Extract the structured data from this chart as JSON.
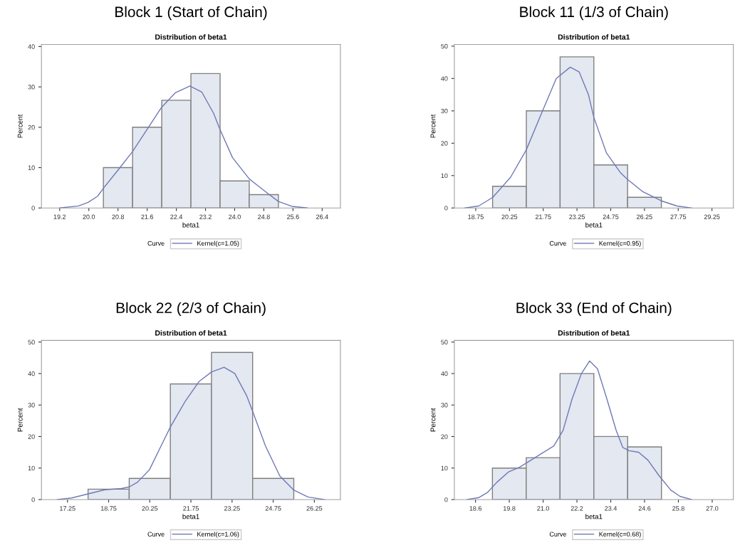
{
  "chart_data": [
    {
      "type": "histogram",
      "title": "Block 1 (Start of Chain)",
      "subtitle": "Distribution of beta1",
      "xlabel": "beta1",
      "ylabel": "Percent",
      "legend_title": "Curve",
      "legend": "bottom",
      "grid": false,
      "color": "#e3e8f1",
      "bins": [
        20.4,
        21.2,
        22.0,
        22.8,
        23.6,
        24.4,
        25.2
      ],
      "values": [
        10,
        20,
        26.7,
        33.3,
        6.7,
        3.3
      ],
      "xlim": [
        18.7,
        26.9
      ],
      "xticks": [
        19.2,
        {
          "value": 20,
          "label": "20.0"
        },
        20.8,
        21.6,
        22.4,
        23.2,
        {
          "value": 24,
          "label": "24.0"
        },
        24.8,
        25.6,
        26.4
      ],
      "ylim": [
        0,
        40.5
      ],
      "yticks": [
        0,
        10,
        20,
        30,
        40
      ],
      "series": [
        {
          "type": "line",
          "name": "Kernel(c=1.05)",
          "color": "#6f79b5",
          "x": [
            19.2,
            19.72,
            19.98,
            20.24,
            20.41,
            20.82,
            21.2,
            21.6,
            22.0,
            22.38,
            22.77,
            23.1,
            23.42,
            23.6,
            23.94,
            24.4,
            24.85,
            25.2,
            25.57,
            25.99
          ],
          "values": [
            0,
            0.5,
            1.4,
            2.9,
            5,
            9.6,
            14,
            19.5,
            25,
            28.6,
            30.2,
            28.7,
            23.5,
            19.4,
            12.5,
            7.2,
            4,
            1.6,
            0.4,
            0
          ]
        }
      ]
    },
    {
      "type": "histogram",
      "title": "Block 11 (1/3 of Chain)",
      "subtitle": "Distribution of beta1",
      "xlabel": "beta1",
      "ylabel": "Percent",
      "legend_title": "Curve",
      "legend": "bottom",
      "grid": false,
      "color": "#e3e8f1",
      "bins": [
        19.5,
        21.0,
        22.5,
        24.0,
        25.5,
        27.0
      ],
      "values": [
        6.7,
        30,
        46.7,
        13.3,
        3.3
      ],
      "xlim": [
        17.8,
        30.2
      ],
      "xticks": [
        18.75,
        20.25,
        21.75,
        23.25,
        24.75,
        26.25,
        27.75,
        29.25
      ],
      "ylim": [
        0,
        50.5
      ],
      "yticks": [
        0,
        10,
        20,
        30,
        40,
        50
      ],
      "series": [
        {
          "type": "line",
          "name": "Kernel(c=0.95)",
          "color": "#6f79b5",
          "x": [
            18.27,
            18.88,
            19.51,
            20.3,
            21.0,
            21.72,
            22.33,
            22.95,
            23.35,
            23.76,
            24.0,
            24.56,
            25.17,
            25.5,
            26.18,
            27.0,
            27.7,
            28.35
          ],
          "values": [
            0,
            0.6,
            3.3,
            9.5,
            18,
            30,
            40,
            43.5,
            42,
            35,
            28,
            17,
            11,
            8.8,
            5,
            2.2,
            0.6,
            0
          ]
        }
      ]
    },
    {
      "type": "histogram",
      "title": "Block 22 (2/3 of Chain)",
      "subtitle": "Distribution of beta1",
      "xlabel": "beta1",
      "ylabel": "Percent",
      "legend_title": "Curve",
      "legend": "bottom",
      "grid": false,
      "color": "#e3e8f1",
      "bins": [
        18.0,
        19.5,
        21.0,
        22.5,
        24.0,
        25.5
      ],
      "values": [
        3.3,
        6.7,
        36.7,
        46.7,
        6.7
      ],
      "xlim": [
        16.3,
        27.2
      ],
      "xticks": [
        17.25,
        18.75,
        20.25,
        21.75,
        23.25,
        24.75,
        26.25
      ],
      "ylim": [
        0,
        50.5
      ],
      "yticks": [
        0,
        10,
        20,
        30,
        40,
        50
      ],
      "series": [
        {
          "type": "line",
          "name": "Kernel(c=1.06)",
          "color": "#6f79b5",
          "x": [
            16.88,
            17.4,
            18.0,
            18.6,
            19.21,
            19.5,
            19.8,
            20.24,
            20.66,
            21.0,
            21.53,
            22.05,
            22.5,
            22.96,
            23.35,
            23.78,
            24.0,
            24.47,
            24.99,
            25.5,
            26.02,
            26.63
          ],
          "values": [
            0,
            0.5,
            1.8,
            3.1,
            3.5,
            4,
            5.5,
            9.5,
            17,
            23,
            31,
            37.5,
            40.5,
            42,
            40,
            33,
            28,
            17,
            7.5,
            3,
            0.8,
            0
          ]
        }
      ]
    },
    {
      "type": "histogram",
      "title": "Block 33 (End of Chain)",
      "subtitle": "Distribution of beta1",
      "xlabel": "beta1",
      "ylabel": "Percent",
      "legend_title": "Curve",
      "legend": "bottom",
      "grid": false,
      "color": "#e3e8f1",
      "bins": [
        19.2,
        20.4,
        21.6,
        22.8,
        24.0,
        25.2
      ],
      "values": [
        10,
        13.3,
        40,
        20,
        16.7
      ],
      "xlim": [
        17.85,
        27.75
      ],
      "xticks": [
        18.6,
        19.8,
        {
          "value": 21,
          "label": "21.0"
        },
        22.2,
        23.4,
        24.6,
        25.8,
        {
          "value": 27,
          "label": "27.0"
        }
      ],
      "ylim": [
        0,
        50.5
      ],
      "yticks": [
        0,
        10,
        20,
        30,
        40,
        50
      ],
      "series": [
        {
          "type": "line",
          "name": "Kernel(c=0.68)",
          "color": "#6f79b5",
          "x": [
            18.3,
            18.71,
            19.03,
            19.36,
            19.76,
            20.17,
            20.57,
            20.98,
            21.38,
            21.71,
            22.03,
            22.36,
            22.65,
            22.93,
            23.26,
            23.59,
            23.83,
            24.06,
            24.39,
            24.72,
            25.12,
            25.53,
            25.86,
            26.27
          ],
          "values": [
            0,
            0.6,
            2.3,
            5.5,
            8.7,
            10.3,
            12.5,
            14.8,
            17,
            22,
            32,
            40,
            44,
            41.5,
            32,
            22,
            16.5,
            15.5,
            15,
            12.5,
            7.5,
            3,
            1,
            0
          ]
        }
      ]
    }
  ]
}
